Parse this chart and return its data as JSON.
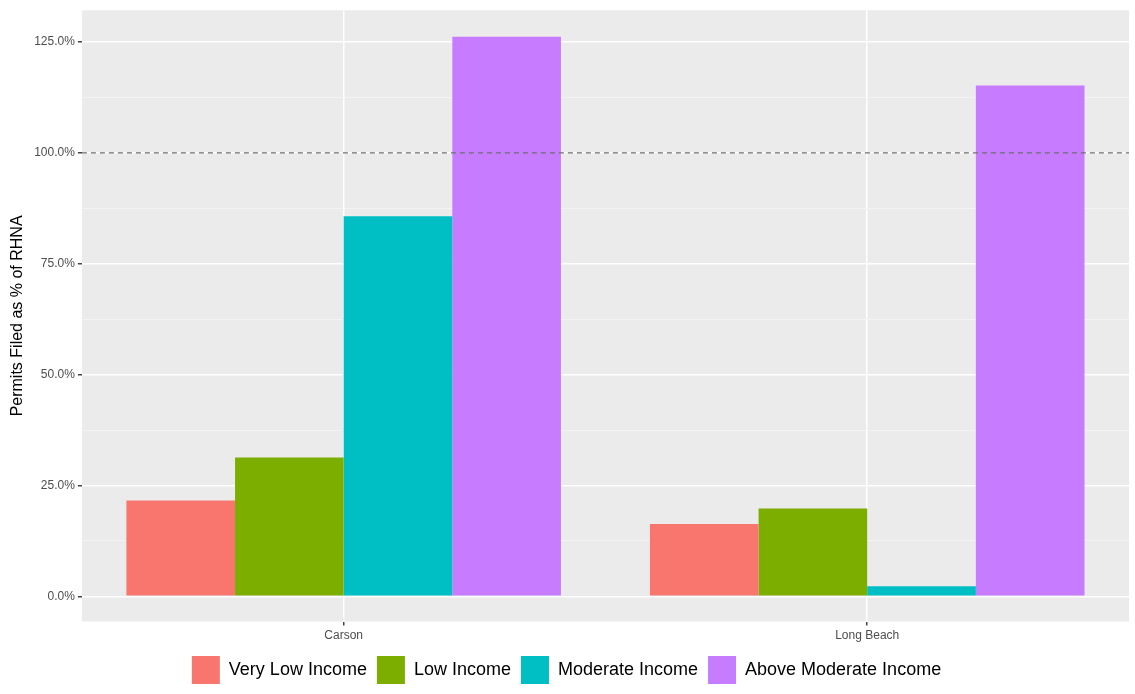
{
  "chart_data": {
    "type": "bar",
    "ylabel": "Permits Filed as % of RHNA",
    "categories": [
      "Carson",
      "Long Beach"
    ],
    "series": [
      {
        "name": "Very Low Income",
        "color": "#f8766d",
        "values": [
          21.6,
          16.3
        ]
      },
      {
        "name": "Low Income",
        "color": "#7cae00",
        "values": [
          31.3,
          19.8
        ]
      },
      {
        "name": "Moderate Income",
        "color": "#00bfc4",
        "values": [
          85.7,
          2.3
        ]
      },
      {
        "name": "Above Moderate Income",
        "color": "#c77cff",
        "values": [
          126.2,
          115.2
        ]
      }
    ],
    "ylim": [
      -5.7,
      132.2
    ],
    "yticks": [
      {
        "value": 0,
        "label": "0.0%"
      },
      {
        "value": 12.5,
        "label": null
      },
      {
        "value": 25,
        "label": "25.0%"
      },
      {
        "value": 37.5,
        "label": null
      },
      {
        "value": 50,
        "label": "50.0%"
      },
      {
        "value": 62.5,
        "label": null
      },
      {
        "value": 75,
        "label": "75.0%"
      },
      {
        "value": 87.5,
        "label": null
      },
      {
        "value": 100,
        "label": "100.0%"
      },
      {
        "value": 112.5,
        "label": null
      },
      {
        "value": 125,
        "label": "125.0%"
      }
    ],
    "ref_lines": [
      {
        "axis": "y",
        "value": 100,
        "color": "#6e6e6e",
        "line_style": "dashed"
      }
    ],
    "grid": true,
    "legend": "bottom"
  }
}
